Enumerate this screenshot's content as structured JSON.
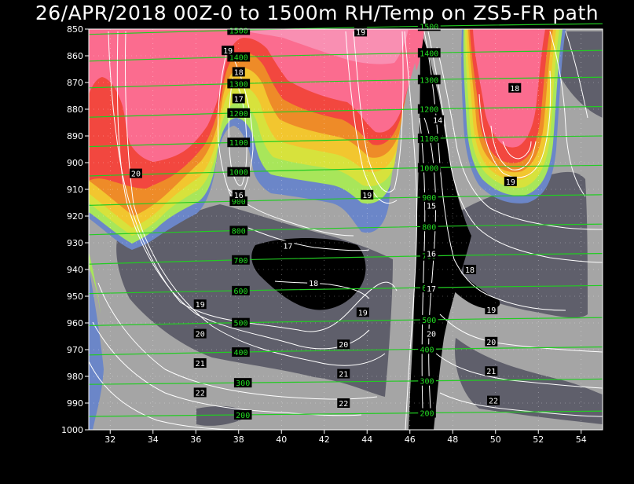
{
  "title": "26/APR/2018 00Z-0 to 1500m RH/Temp on ZS5-FR path",
  "colors": {
    "background": "#000000",
    "plot_gray": "#a5a5a5",
    "dark_gray": "#5f5f6b",
    "black": "#000000",
    "blue": "#6b86c8",
    "light_green": "#a8e65a",
    "yellow_green": "#d7e23c",
    "yellow": "#f2c62f",
    "orange": "#ee8b28",
    "red": "#f2473f",
    "pink": "#fb6c8f",
    "light_pink": "#f98fb2",
    "height_contour": "#22cc22",
    "temp_contour": "#ffffff"
  },
  "chart_data": {
    "type": "contour",
    "title": "26/APR/2018 00Z-0 to 1500m RH/Temp on ZS5-FR path",
    "x_ticks": [
      "32",
      "34",
      "36",
      "38",
      "40",
      "42",
      "44",
      "46",
      "48",
      "50",
      "52",
      "54"
    ],
    "x_tick_values": [
      32,
      34,
      36,
      38,
      40,
      42,
      44,
      46,
      48,
      50,
      52,
      54
    ],
    "xlim": [
      31,
      55
    ],
    "y_ticks": [
      "850",
      "860",
      "870",
      "880",
      "890",
      "900",
      "910",
      "920",
      "930",
      "940",
      "950",
      "960",
      "970",
      "980",
      "990",
      "1000"
    ],
    "y_tick_values": [
      850,
      860,
      870,
      880,
      890,
      900,
      910,
      920,
      930,
      940,
      950,
      960,
      970,
      980,
      990,
      1000
    ],
    "ylim": [
      850,
      1000
    ],
    "y_inverted": true,
    "grid": true,
    "height_contours": [
      {
        "label": "1500",
        "p": [
          852,
          849,
          848
        ]
      },
      {
        "label": "1400",
        "p": [
          862,
          859,
          858
        ]
      },
      {
        "label": "1300",
        "p": [
          872,
          869,
          868
        ]
      },
      {
        "label": "1200",
        "p": [
          883,
          880,
          879
        ]
      },
      {
        "label": "1100",
        "p": [
          894,
          891,
          890
        ]
      },
      {
        "label": "1000",
        "p": [
          905,
          902,
          901
        ]
      },
      {
        "label": "900",
        "p": [
          916,
          913,
          912
        ]
      },
      {
        "label": "800",
        "p": [
          927,
          924,
          923
        ]
      },
      {
        "label": "700",
        "p": [
          938,
          935,
          934
        ]
      },
      {
        "label": "600",
        "p": [
          949,
          947,
          946
        ]
      },
      {
        "label": "500",
        "p": [
          961,
          959,
          958
        ]
      },
      {
        "label": "400",
        "p": [
          972,
          970,
          969
        ]
      },
      {
        "label": "300",
        "p": [
          983,
          982,
          981
        ]
      },
      {
        "label": "200",
        "p": [
          995,
          994,
          993
        ]
      }
    ],
    "height_label_positions": [
      {
        "label": "1500",
        "x": [
          38,
          46.9
        ]
      },
      {
        "label": "1400",
        "x": [
          38,
          46.9
        ]
      },
      {
        "label": "1300",
        "x": [
          38,
          46.9
        ]
      },
      {
        "label": "1200",
        "x": [
          38,
          46.9
        ]
      },
      {
        "label": "1100",
        "x": [
          38,
          46.9
        ]
      },
      {
        "label": "1000",
        "x": [
          38,
          46.9
        ]
      },
      {
        "label": "900",
        "x": [
          38,
          46.9
        ]
      },
      {
        "label": "800",
        "x": [
          38,
          46.9
        ]
      },
      {
        "label": "700",
        "x": [
          38.1,
          46.9
        ]
      },
      {
        "label": "600",
        "x": [
          38.1,
          46.9
        ]
      },
      {
        "label": "500",
        "x": [
          38.1,
          46.9
        ]
      },
      {
        "label": "400",
        "x": [
          38.1,
          46.8
        ]
      },
      {
        "label": "300",
        "x": [
          38.2,
          46.8
        ]
      },
      {
        "label": "200",
        "x": [
          38.2,
          46.8
        ]
      }
    ],
    "temp_labels": [
      {
        "t": "19",
        "x": 43.7,
        "p": 851
      },
      {
        "t": "19",
        "x": 37.5,
        "p": 858
      },
      {
        "t": "18",
        "x": 38.0,
        "p": 866
      },
      {
        "t": "17",
        "x": 38.0,
        "p": 876
      },
      {
        "t": "18",
        "x": 50.9,
        "p": 872
      },
      {
        "t": "14",
        "x": 47.3,
        "p": 884
      },
      {
        "t": "20",
        "x": 33.2,
        "p": 904
      },
      {
        "t": "19",
        "x": 50.7,
        "p": 907
      },
      {
        "t": "16",
        "x": 38.0,
        "p": 912
      },
      {
        "t": "19",
        "x": 44.0,
        "p": 912
      },
      {
        "t": "15",
        "x": 47.0,
        "p": 916
      },
      {
        "t": "17",
        "x": 40.3,
        "p": 931
      },
      {
        "t": "16",
        "x": 47.0,
        "p": 934
      },
      {
        "t": "18",
        "x": 48.8,
        "p": 940
      },
      {
        "t": "18",
        "x": 41.5,
        "p": 945
      },
      {
        "t": "17",
        "x": 47.0,
        "p": 947
      },
      {
        "t": "19",
        "x": 36.2,
        "p": 953
      },
      {
        "t": "19",
        "x": 43.8,
        "p": 956
      },
      {
        "t": "19",
        "x": 49.8,
        "p": 955
      },
      {
        "t": "20",
        "x": 36.2,
        "p": 964
      },
      {
        "t": "20",
        "x": 47.0,
        "p": 964
      },
      {
        "t": "20",
        "x": 42.9,
        "p": 968
      },
      {
        "t": "20",
        "x": 49.8,
        "p": 967
      },
      {
        "t": "21",
        "x": 36.2,
        "p": 975
      },
      {
        "t": "21",
        "x": 42.9,
        "p": 979
      },
      {
        "t": "21",
        "x": 49.8,
        "p": 978
      },
      {
        "t": "22",
        "x": 36.2,
        "p": 986
      },
      {
        "t": "22",
        "x": 42.9,
        "p": 990
      },
      {
        "t": "22",
        "x": 49.9,
        "p": 989
      }
    ]
  }
}
